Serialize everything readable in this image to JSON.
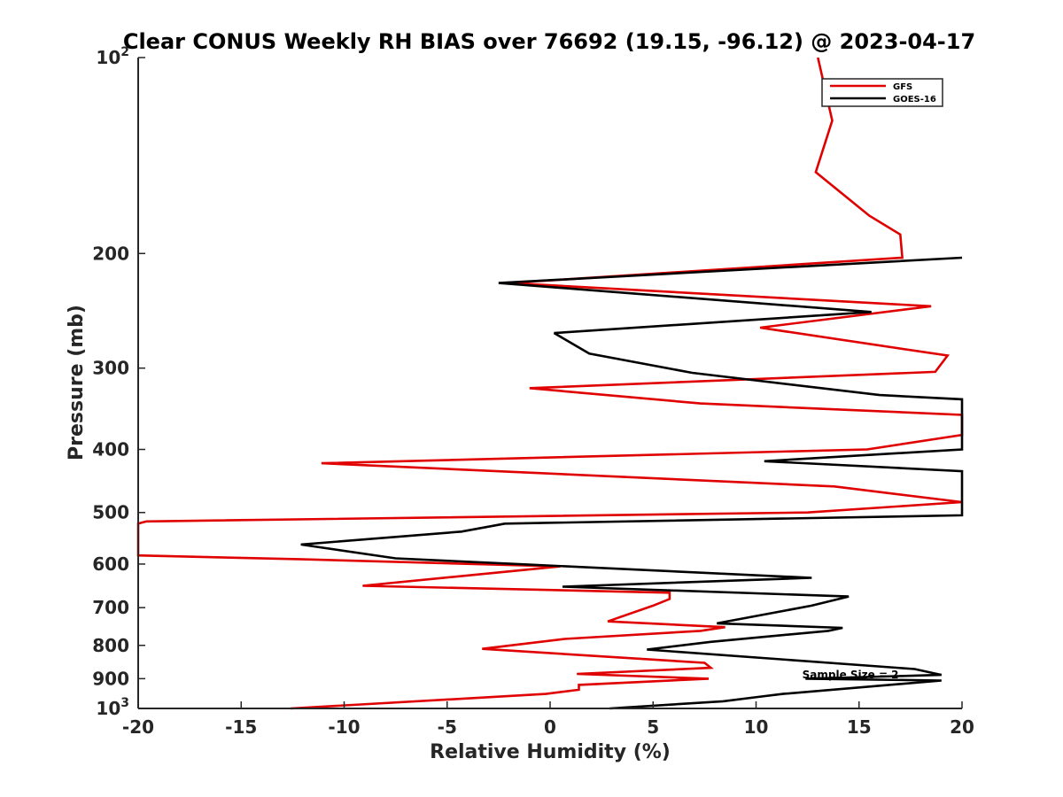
{
  "chart_data": {
    "type": "line",
    "title": "Clear CONUS Weekly RH BIAS over 76692 (19.15, -96.12) @ 2023-04-17",
    "xlabel": "Relative Humidity (%)",
    "ylabel": "Pressure (mb)",
    "xlim": [
      -20,
      20
    ],
    "ylim": [
      100,
      1000
    ],
    "yscale": "log",
    "yreversed": true,
    "grid": false,
    "legend_position": "top-right",
    "x_ticks": [
      -20,
      -15,
      -10,
      -5,
      0,
      5,
      10,
      15,
      20
    ],
    "x_tick_labels": [
      "-20",
      "-15",
      "-10",
      "-5",
      "0",
      "5",
      "10",
      "15",
      "20"
    ],
    "y_ticks": [
      200,
      300,
      400,
      500,
      600,
      700,
      800,
      900
    ],
    "y_tick_labels": [
      "200",
      "300",
      "400",
      "500",
      "600",
      "700",
      "800",
      "900"
    ],
    "y_decade_labels": [
      {
        "value": 100,
        "base": "10",
        "exp": "2"
      },
      {
        "value": 1000,
        "base": "10",
        "exp": "3"
      }
    ],
    "series": [
      {
        "name": "GFS",
        "color": "#e00000",
        "points": [
          [
            13.0,
            100
          ],
          [
            13.7,
            125
          ],
          [
            12.9,
            150
          ],
          [
            15.5,
            175
          ],
          [
            17.0,
            187
          ],
          [
            17.1,
            203
          ],
          [
            -2.0,
            222
          ],
          [
            18.5,
            241
          ],
          [
            10.2,
            260
          ],
          [
            19.3,
            287
          ],
          [
            18.7,
            304
          ],
          [
            -1.0,
            322
          ],
          [
            7.3,
            340
          ],
          [
            20.0,
            354
          ],
          [
            20.0,
            380
          ],
          [
            15.4,
            400
          ],
          [
            -11.1,
            420
          ],
          [
            13.8,
            456
          ],
          [
            20.0,
            482
          ],
          [
            12.5,
            500
          ],
          [
            -19.6,
            516
          ],
          [
            -20.0,
            520
          ],
          [
            -20.0,
            582
          ],
          [
            -12.0,
            590
          ],
          [
            0.5,
            605
          ],
          [
            -9.1,
            648
          ],
          [
            5.8,
            664
          ],
          [
            5.8,
            679
          ],
          [
            5.0,
            695
          ],
          [
            2.8,
            735
          ],
          [
            8.5,
            750
          ],
          [
            7.3,
            760
          ],
          [
            0.7,
            782
          ],
          [
            -3.3,
            810
          ],
          [
            7.5,
            851
          ],
          [
            7.8,
            866
          ],
          [
            1.3,
            885
          ],
          [
            7.7,
            900
          ],
          [
            1.4,
            920
          ],
          [
            1.4,
            936
          ],
          [
            -0.2,
            950
          ],
          [
            -12.6,
            1000
          ]
        ]
      },
      {
        "name": "GOES-16",
        "color": "#000000",
        "points": [
          [
            20.0,
            203
          ],
          [
            -2.5,
            222
          ],
          [
            15.6,
            246
          ],
          [
            0.2,
            265
          ],
          [
            1.9,
            285
          ],
          [
            6.9,
            305
          ],
          [
            16.0,
            330
          ],
          [
            20.0,
            335
          ],
          [
            20.0,
            400
          ],
          [
            10.4,
            417
          ],
          [
            20.0,
            432
          ],
          [
            20.0,
            505
          ],
          [
            -2.2,
            520
          ],
          [
            -4.3,
            535
          ],
          [
            -12.1,
            560
          ],
          [
            -7.5,
            588
          ],
          [
            12.7,
            630
          ],
          [
            0.6,
            650
          ],
          [
            14.5,
            673
          ],
          [
            12.7,
            695
          ],
          [
            8.1,
            740
          ],
          [
            14.2,
            752
          ],
          [
            13.5,
            760
          ],
          [
            7.8,
            790
          ],
          [
            4.7,
            812
          ],
          [
            17.7,
            870
          ],
          [
            19.0,
            888
          ],
          [
            12.4,
            900
          ],
          [
            19.0,
            906
          ],
          [
            11.3,
            950
          ],
          [
            10.1,
            960
          ],
          [
            8.4,
            975
          ],
          [
            2.9,
            1000
          ]
        ]
      }
    ],
    "annotations": [
      {
        "text": "Sample Size = 2",
        "x": 12.5,
        "y": 910
      }
    ]
  }
}
